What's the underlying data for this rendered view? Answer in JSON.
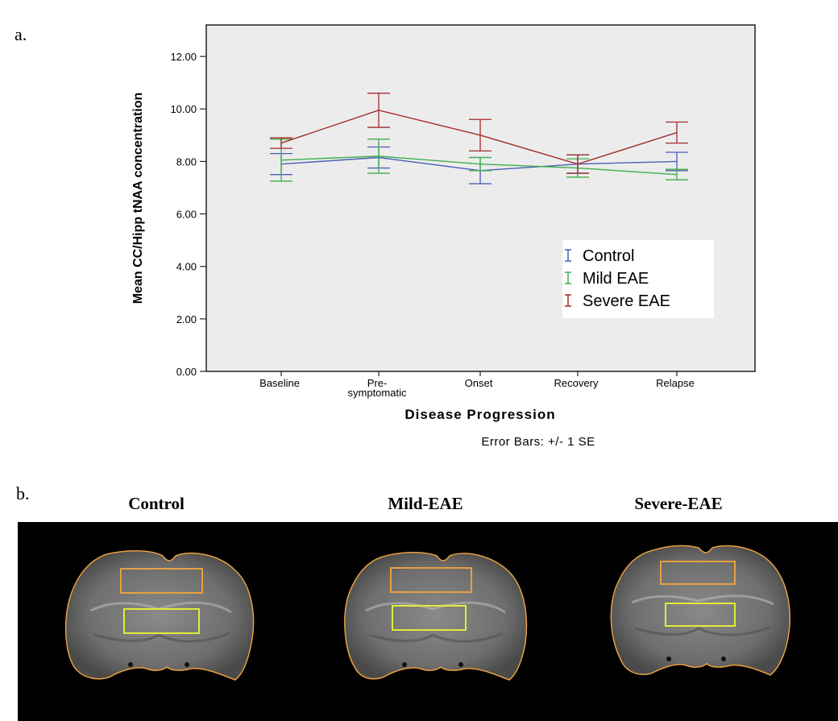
{
  "panel_a_label": "a.",
  "panel_b_label": "b.",
  "chart_data": {
    "type": "line",
    "title": "",
    "xlabel": "Disease Progression",
    "ylabel": "Mean CC/Hipp tNAA concentration",
    "categories": [
      "Baseline",
      "Pre-\nsymptomatic",
      "Onset",
      "Recovery",
      "Relapse"
    ],
    "ylim": [
      0,
      13.2
    ],
    "yticks": [
      0,
      2,
      4,
      6,
      8,
      10,
      12
    ],
    "ytick_labels": [
      "0.00",
      "2.00",
      "4.00",
      "6.00",
      "8.00",
      "10.00",
      "12.00"
    ],
    "note": "Error Bars: +/- 1 SE",
    "legend_position": "lower-right",
    "series": [
      {
        "name": "Control",
        "color": "#4a5fb5",
        "values": [
          7.9,
          8.15,
          7.65,
          7.9,
          8.0
        ],
        "errors": [
          0.4,
          0.4,
          0.5,
          0.35,
          0.35
        ]
      },
      {
        "name": "Mild EAE",
        "color": "#3cb04a",
        "values": [
          8.05,
          8.2,
          7.9,
          7.75,
          7.5
        ],
        "errors": [
          0.8,
          0.65,
          0.25,
          0.35,
          0.2
        ]
      },
      {
        "name": "Severe EAE",
        "color": "#a52a2a",
        "values": [
          8.7,
          9.95,
          9.0,
          7.9,
          9.1
        ],
        "errors": [
          0.2,
          0.65,
          0.6,
          0.35,
          0.4
        ]
      }
    ]
  },
  "mri_captions": [
    "Control",
    "Mild-EAE",
    "Severe-EAE"
  ]
}
